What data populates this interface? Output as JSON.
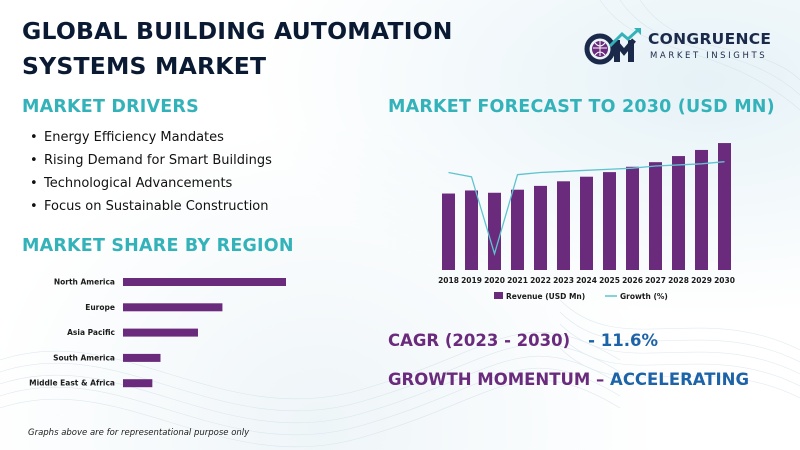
{
  "title_line1": "GLOBAL BUILDING AUTOMATION",
  "title_line2": "SYSTEMS MARKET",
  "logo": {
    "name": "CONGRUENCE",
    "tagline": "MARKET INSIGHTS",
    "mark_letters": "CM"
  },
  "drivers": {
    "heading": "MARKET DRIVERS",
    "items": [
      "Energy Efficiency Mandates",
      "Rising Demand for Smart Buildings",
      "Technological Advancements",
      "Focus on Sustainable Construction"
    ]
  },
  "region": {
    "heading": "MARKET SHARE BY REGION"
  },
  "forecast": {
    "heading": "MARKET FORECAST TO 2030 (USD MN)"
  },
  "cagr": {
    "label": "CAGR (2023 - 2030)",
    "value": "- 11.6%"
  },
  "momentum": {
    "label": "GROWTH MOMENTUM –",
    "value": "ACCELERATING"
  },
  "footnote": "Graphs above are for representational purpose only",
  "colors": {
    "teal": "#33b3b9",
    "purple": "#6a2b7d",
    "navy": "#0b1a33",
    "blue": "#1d63a8"
  },
  "chart_data": [
    {
      "type": "bar",
      "orientation": "horizontal",
      "categories": [
        "North America",
        "Europe",
        "Asia Pacific",
        "South America",
        "Middle East & Africa"
      ],
      "values": [
        100,
        61,
        46,
        23,
        18
      ],
      "color": "#6a2b7d"
    },
    {
      "type": "bar",
      "categories": [
        "2018",
        "2019",
        "2020",
        "2021",
        "2022",
        "2023",
        "2024",
        "2025",
        "2026",
        "2027",
        "2028",
        "2029",
        "2030"
      ],
      "series": [
        {
          "name": "Revenue (USD Mn)",
          "type": "bar",
          "color": "#6a2b7d",
          "values": [
            100,
            104,
            101,
            105,
            110,
            116,
            122,
            128,
            135,
            141,
            149,
            157,
            166
          ]
        },
        {
          "name": "Growth (%)",
          "type": "line",
          "color": "#5fc4cf",
          "values": [
            9.0,
            8.6,
            1.5,
            8.8,
            9.0,
            9.1,
            9.2,
            9.3,
            9.4,
            9.6,
            9.7,
            9.8,
            10.0
          ]
        }
      ],
      "legend": "bottom",
      "grid": false
    }
  ]
}
